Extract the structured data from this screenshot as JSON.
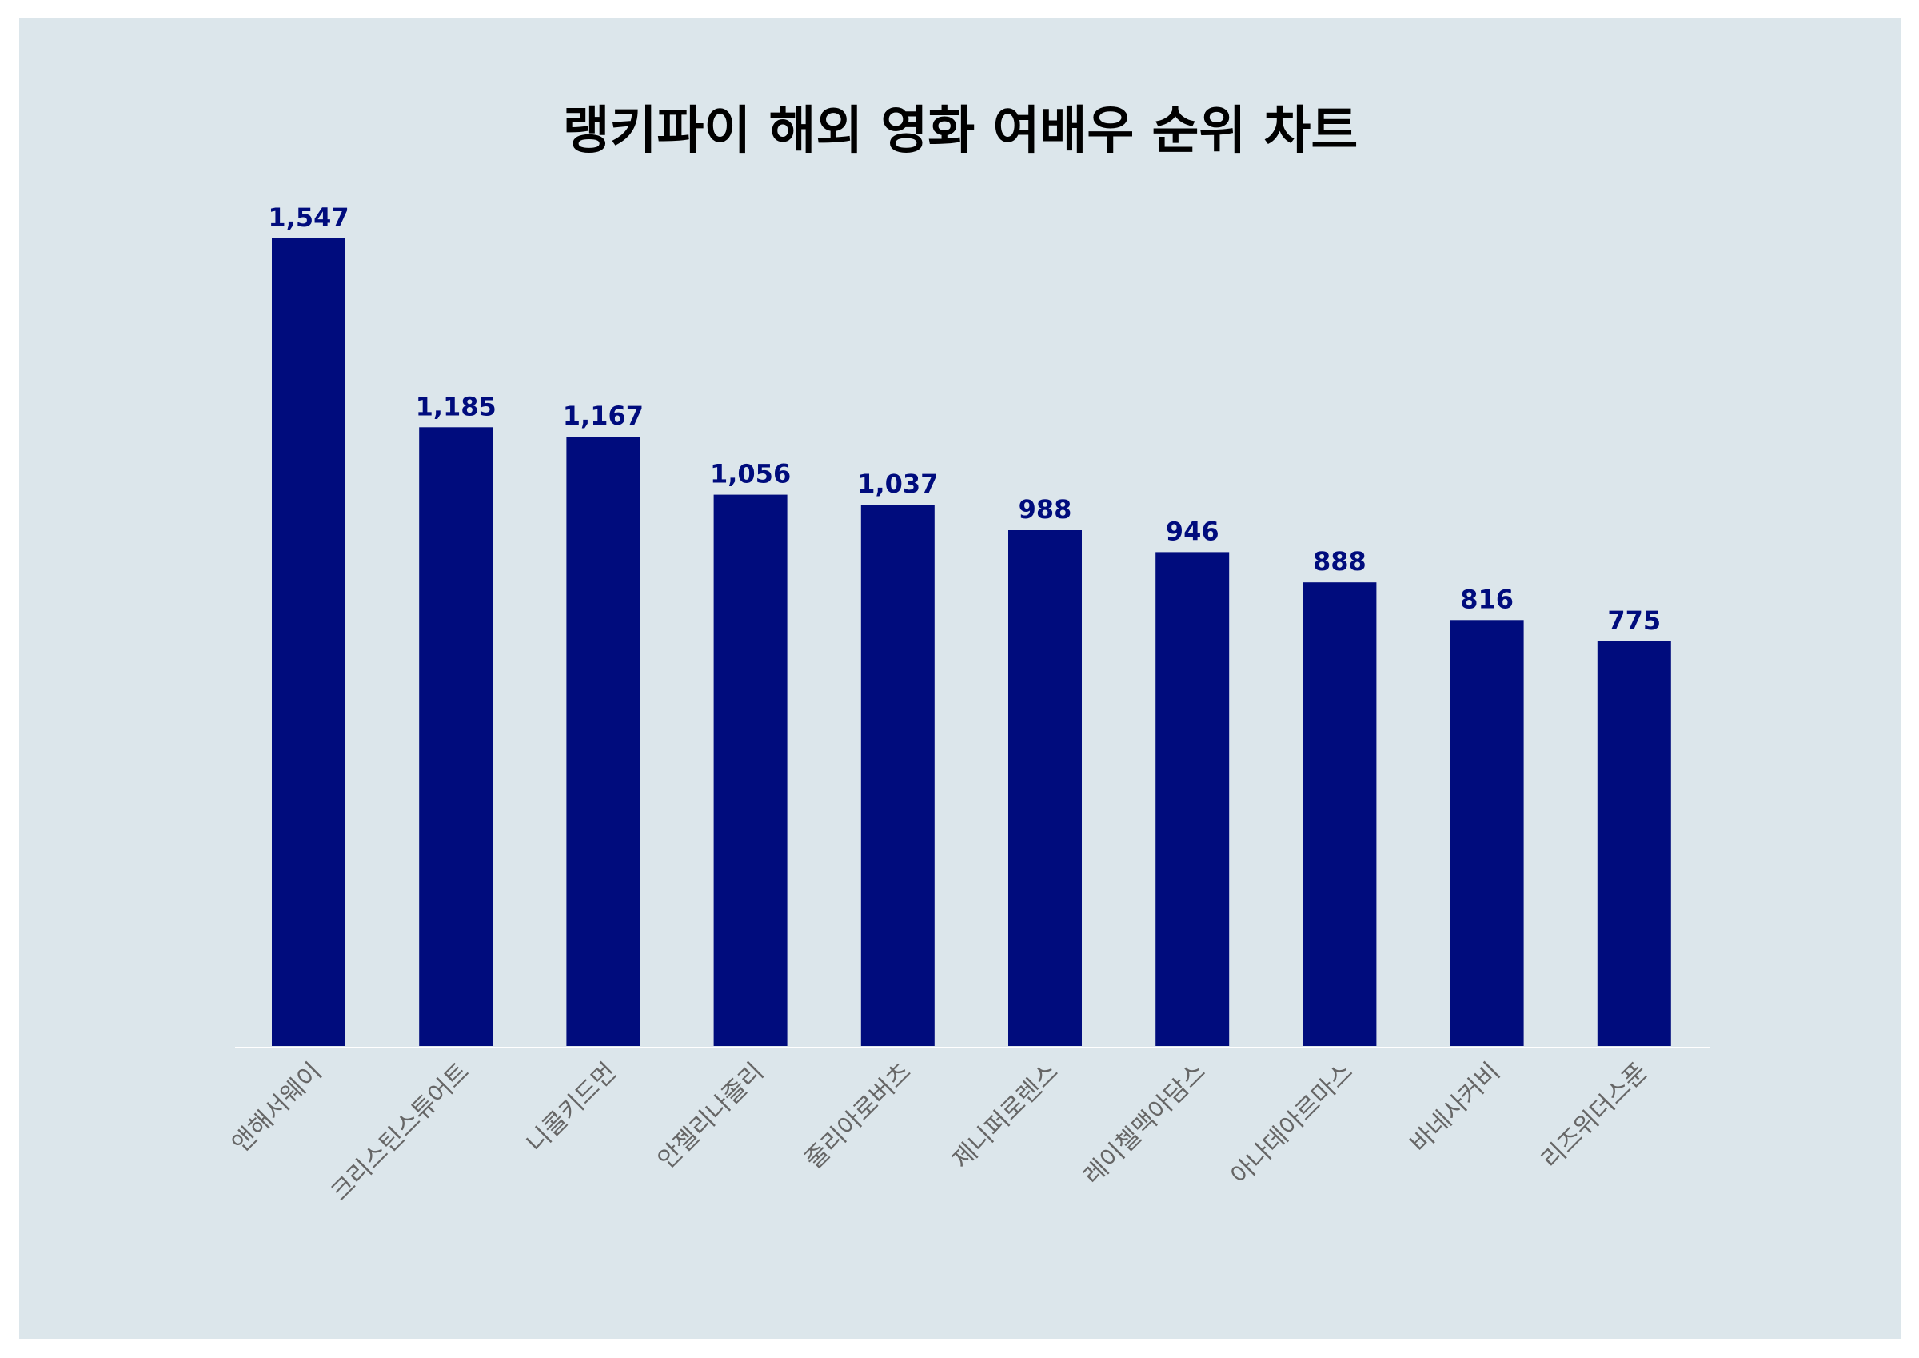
{
  "chart_data": {
    "type": "bar",
    "title": "랭키파이 해외 영화 여배우 순위 차트",
    "xlabel": "",
    "ylabel": "",
    "categories": [
      "앤해서웨이",
      "크리스틴스튜어트",
      "니콜키드먼",
      "안젤리나졸리",
      "줄리아로버츠",
      "제니퍼로렌스",
      "레이첼맥아담스",
      "아나데아르마스",
      "바네사커비",
      "리즈위더스푼"
    ],
    "values": [
      1547,
      1185,
      1167,
      1056,
      1037,
      988,
      946,
      888,
      816,
      775
    ],
    "value_labels": [
      "1,547",
      "1,185",
      "1,167",
      "1,056",
      "1,037",
      "988",
      "946",
      "888",
      "816",
      "775"
    ],
    "ylim": [
      0,
      1547
    ],
    "grid": false,
    "legend": "none"
  },
  "colors": {
    "background": "#dce6eb",
    "bar": "#000c7d",
    "value_label": "#000c7d",
    "tick_label": "#666666",
    "axis": "#ffffff"
  }
}
